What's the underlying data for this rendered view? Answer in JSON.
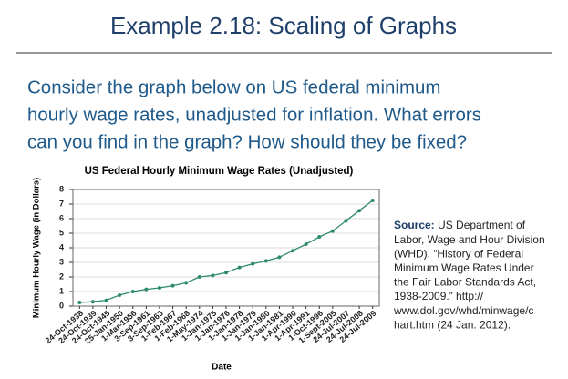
{
  "slide": {
    "title": "Example 2.18: Scaling of Graphs",
    "body": [
      "Consider the graph below on US federal minimum",
      "hourly wage rates, unadjusted for inflation. What errors",
      "can you find in the graph? How should they be fixed?"
    ],
    "source_label": "Source:",
    "source_lines": [
      " US Department of",
      "Labor, Wage and Hour Division",
      "(WHD). “History of Federal",
      "Minimum Wage Rates Under",
      "the Fair Labor Standards Act,",
      "1938-2009.” http://",
      "www.dol.gov/whd/minwage/c",
      "hart.htm (24 Jan. 2012)."
    ]
  },
  "chart_data": {
    "type": "line",
    "title": "US Federal Hourly Minimum Wage Rates (Unadjusted)",
    "x_label": "Date",
    "y_label": "Minimum Hourly Wage (in Dollars)",
    "categories": [
      "24-Oct-1938",
      "24-Oct-1939",
      "24-Oct-1945",
      "25-Jan-1950",
      "1-Mar-1956",
      "3-Sep-1961",
      "3-Sep-1963",
      "1-Feb-1967",
      "1-Feb-1968",
      "1-May-1974",
      "1-Jan-1975",
      "1-Jan-1976",
      "1-Jan-1978",
      "1-Jan-1979",
      "1-Jan-1980",
      "1-Jan-1981",
      "1-Apr-1990",
      "1-Apr-1991",
      "1-Oct-1996",
      "1-Sept-2005",
      "24-Jul-2007",
      "24-Jul-2008",
      "24-Jul-2009"
    ],
    "values": [
      0.25,
      0.3,
      0.4,
      0.75,
      1.0,
      1.15,
      1.25,
      1.4,
      1.6,
      2.0,
      2.1,
      2.3,
      2.65,
      2.9,
      3.1,
      3.35,
      3.8,
      4.25,
      4.75,
      5.15,
      5.85,
      6.55,
      7.25
    ],
    "color": "#2e8b6e",
    "ylim": [
      0,
      8
    ],
    "yticks": [
      0,
      1,
      2,
      3,
      4,
      5,
      6,
      7,
      8
    ],
    "grid": true
  }
}
